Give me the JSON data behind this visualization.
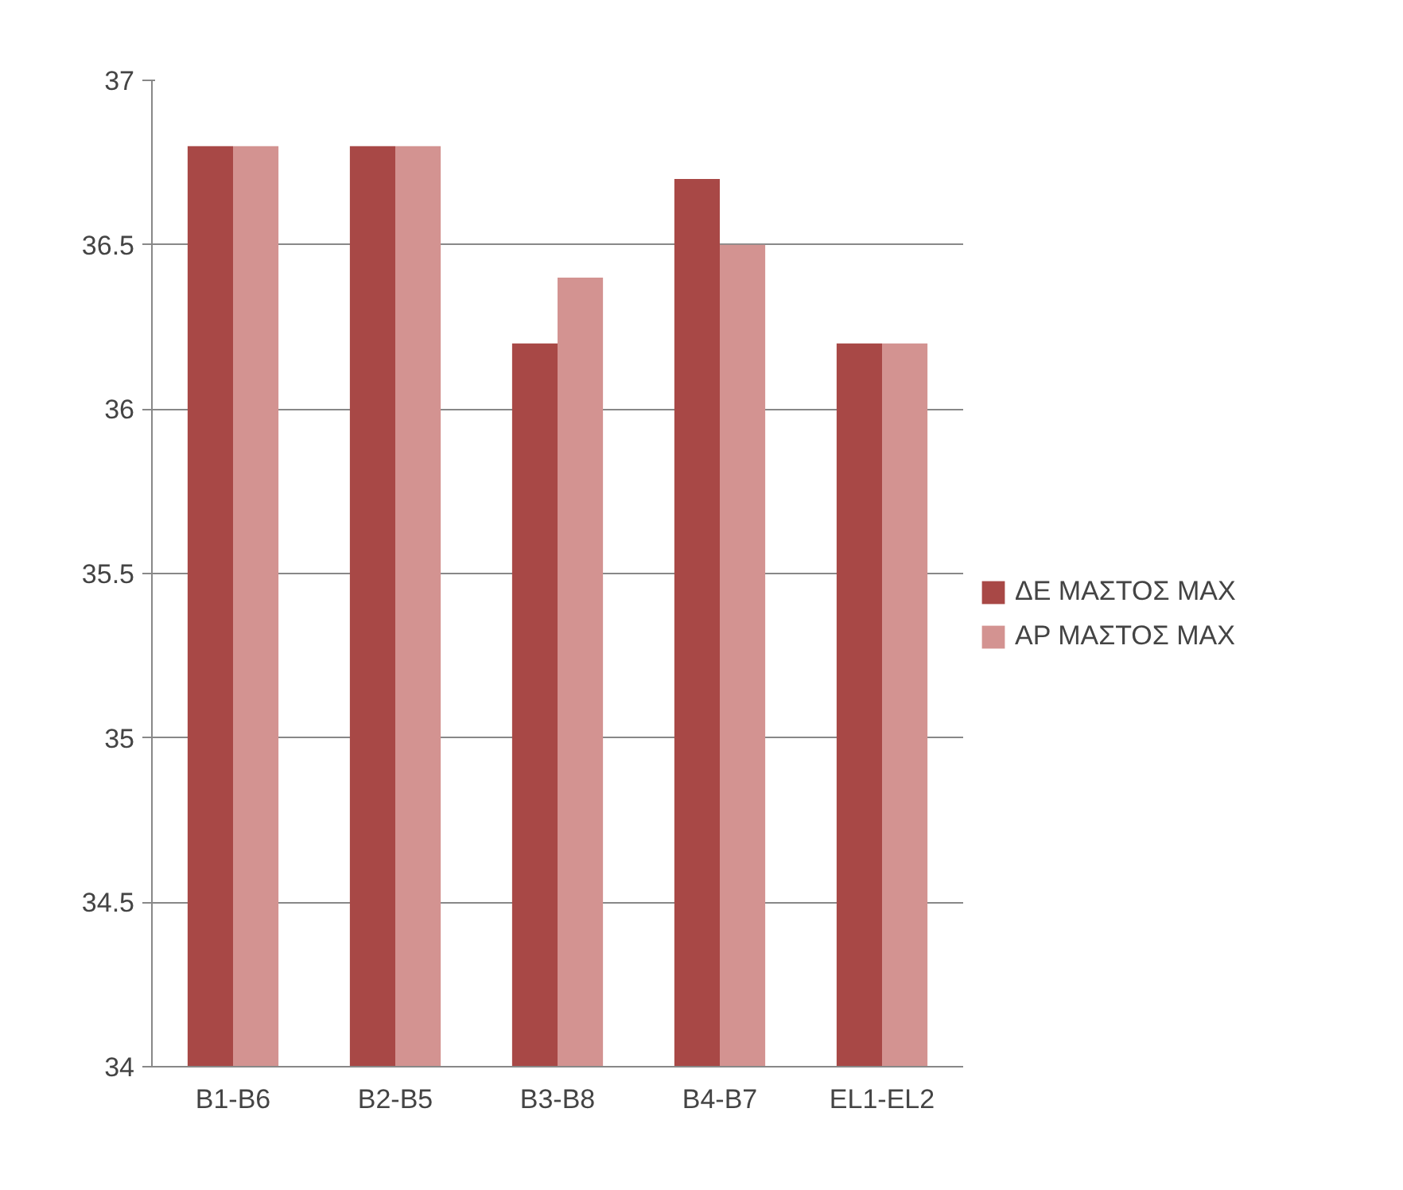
{
  "chart_data": {
    "type": "bar",
    "categories": [
      "B1-B6",
      "B2-B5",
      "B3-B8",
      "B4-B7",
      "EL1-EL2"
    ],
    "series": [
      {
        "name": "ΔΕ ΜΑΣΤΟΣ MAX",
        "color": "#a84846",
        "values": [
          36.8,
          36.8,
          36.2,
          36.7,
          36.2
        ]
      },
      {
        "name": "ΑΡ ΜΑΣΤΟΣ MAX",
        "color": "#d39391",
        "values": [
          36.8,
          36.8,
          36.4,
          36.5,
          36.2
        ]
      }
    ],
    "ylim": [
      34,
      37
    ],
    "yticks": [
      34,
      34.5,
      35,
      35.5,
      36,
      36.5,
      37
    ],
    "grid": "y",
    "legend": "right"
  }
}
